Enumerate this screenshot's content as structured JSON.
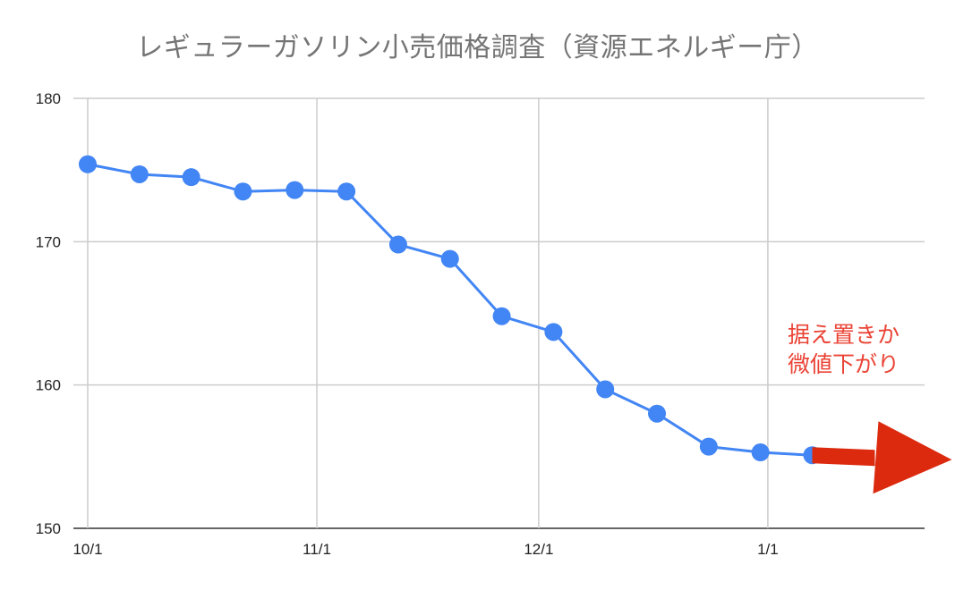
{
  "chart_data": {
    "type": "line",
    "title": "レギュラーガソリン小売価格調査（資源エネルギー庁）",
    "xlabel": "",
    "ylabel": "",
    "ylim": [
      150,
      180
    ],
    "y_ticks": [
      150,
      160,
      170,
      180
    ],
    "x_ticks": [
      "10/1",
      "11/1",
      "12/1",
      "1/1"
    ],
    "grid": true,
    "series": [
      {
        "color": "#4285f4",
        "points": [
          {
            "x": "10/1",
            "y": 175.4
          },
          {
            "x": "10/8",
            "y": 174.7
          },
          {
            "x": "10/15",
            "y": 174.5
          },
          {
            "x": "10/22",
            "y": 173.5
          },
          {
            "x": "10/29",
            "y": 173.6
          },
          {
            "x": "11/5",
            "y": 173.5
          },
          {
            "x": "11/12",
            "y": 169.8
          },
          {
            "x": "11/19",
            "y": 168.8
          },
          {
            "x": "11/26",
            "y": 164.8
          },
          {
            "x": "12/3",
            "y": 163.7
          },
          {
            "x": "12/10",
            "y": 159.7
          },
          {
            "x": "12/17",
            "y": 158.0
          },
          {
            "x": "12/24",
            "y": 155.7
          },
          {
            "x": "12/31",
            "y": 155.3
          },
          {
            "x": "1/7",
            "y": 155.1
          }
        ]
      }
    ],
    "annotation": {
      "lines": [
        "据え置きか",
        "微値下がり"
      ],
      "color": "#ea4335"
    },
    "arrow_color": "#dc2a0f"
  }
}
